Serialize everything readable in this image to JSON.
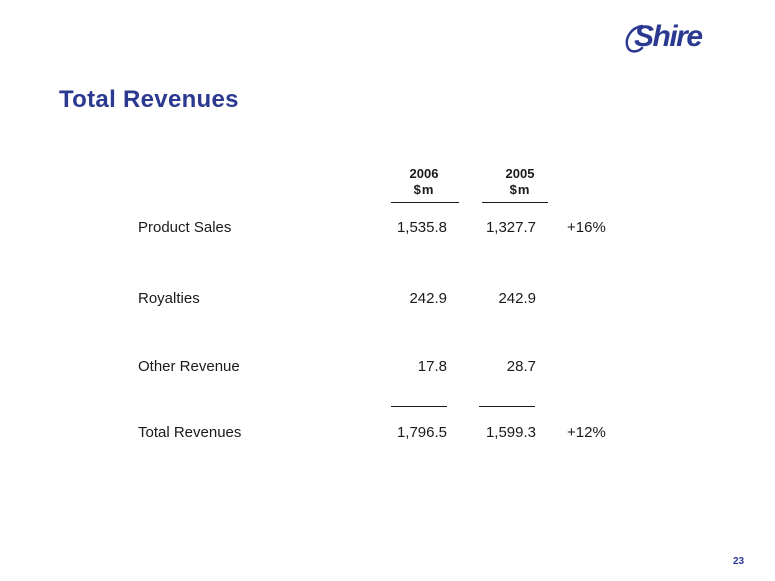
{
  "logo": {
    "text": "Shire"
  },
  "title": "Total Revenues",
  "columns": [
    {
      "year": "2006",
      "unit": "$m"
    },
    {
      "year": "2005",
      "unit": "$m"
    }
  ],
  "rows": [
    {
      "label": "Product Sales",
      "values": [
        "1,535.8",
        "1,327.7"
      ],
      "change": "+16%"
    },
    {
      "label": "Royalties",
      "values": [
        "242.9",
        "242.9"
      ],
      "change": ""
    },
    {
      "label": "Other Revenue",
      "values": [
        "17.8",
        "28.7"
      ],
      "change": ""
    },
    {
      "label": "Total Revenues",
      "values": [
        "1,796.5",
        "1,599.3"
      ],
      "change": "+12%"
    }
  ],
  "page_number": "23",
  "colors": {
    "brand": "#2b3990",
    "text": "#1a1a1a"
  }
}
